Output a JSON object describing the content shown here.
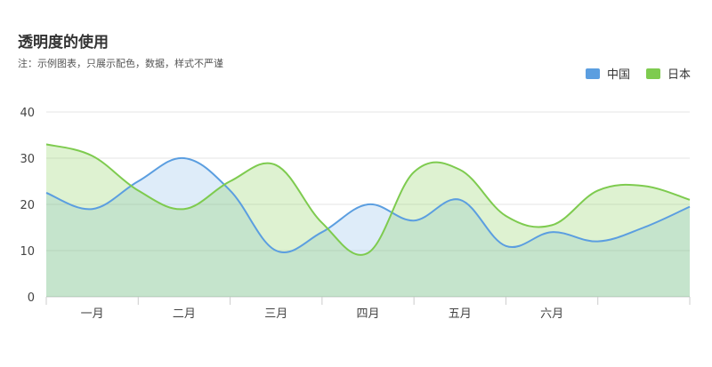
{
  "chart": {
    "title": "透明度的使用",
    "subtitle": "注：示例图表，只展示配色，数据，样式不严谨"
  },
  "legend": [
    {
      "name": "中国",
      "color": "#5b9ee0"
    },
    {
      "name": "日本",
      "color": "#7ecb4f"
    }
  ],
  "chart_data": {
    "type": "area",
    "title": "透明度的使用",
    "subtitle": "注：示例图表，只展示配色，数据，样式不严谨",
    "categories": [
      "一月",
      "二月",
      "三月",
      "四月",
      "五月",
      "六月"
    ],
    "x": [
      0,
      0.5,
      1,
      1.5,
      2,
      2.5,
      3,
      3.5,
      4,
      4.5,
      5,
      5.5,
      6,
      6.5,
      7
    ],
    "ylim": [
      0,
      40
    ],
    "yticks": [
      0,
      10,
      20,
      30,
      40
    ],
    "grid": true,
    "legend_position": "top-right",
    "series": [
      {
        "name": "中国",
        "color": "#5b9ee0",
        "fill": "rgba(91,158,224,0.2)",
        "values": [
          22.5,
          19,
          25,
          30,
          23,
          10,
          14,
          20,
          16.5,
          21,
          11,
          14,
          12,
          15,
          19.5
        ]
      },
      {
        "name": "日本",
        "color": "#7ecb4f",
        "fill": "rgba(126,203,79,0.26)",
        "values": [
          33,
          30.5,
          23,
          19,
          25,
          28.5,
          16,
          9.5,
          27,
          27.5,
          17.5,
          15.5,
          23,
          24,
          21
        ]
      }
    ]
  }
}
